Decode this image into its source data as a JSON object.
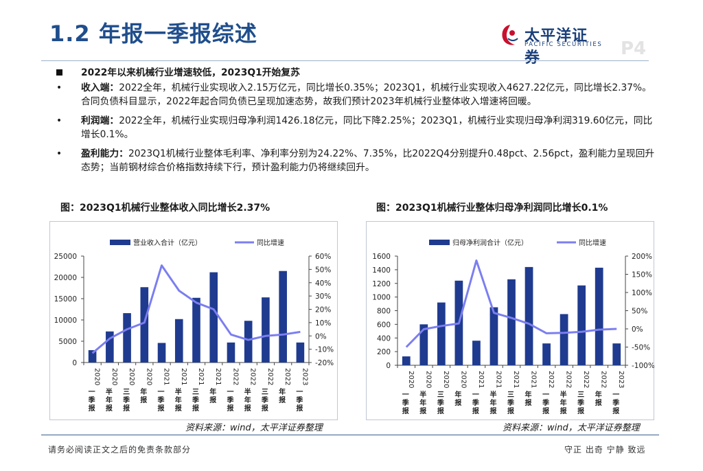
{
  "page": {
    "title": "1.2 年报一季报综述",
    "logo_cn": "太平洋证券",
    "logo_en": "PACIFIC SECURITIES",
    "page_number": "P4"
  },
  "summary": {
    "headline": "2022年以来机械行业增速较低，2023Q1开始复苏",
    "bullets": [
      {
        "marker": "•",
        "label": "收入端：",
        "text": "2022全年，机械行业实现收入2.15万亿元，同比增长0.35%；2023Q1，机械行业实现收入4627.22亿元，同比增长2.37%。合同负债科目显示，2022年起合同负债已呈现加速态势，故我们预计2023年机械行业整体收入增速将回暖。"
      },
      {
        "marker": "•",
        "label": "利润端：",
        "text": "2022全年，机械行业实现归母净利润1426.18亿元，同比下降2.25%；2023Q1，机械行业实现归母净利润319.60亿元，同比增长0.1%。"
      },
      {
        "marker": "•",
        "label": "盈利能力：",
        "text": "2023Q1机械行业整体毛利率、净利率分别为24.22%、7.35%，比2022Q4分别提升0.48pct、2.56pct，盈利能力呈现回升态势；当前钢材综合价格指数持续下行，预计盈利能力仍将继续回升。"
      }
    ]
  },
  "source_note": "资料来源：wind，太平洋证券整理",
  "footer": {
    "left": "请务必阅读正文之后的免责条款部分",
    "right": "守正 出奇 宁静 致远"
  },
  "colors": {
    "bar": "#1f3b8f",
    "line": "#7b7ef0",
    "title": "#1f4e8c"
  },
  "chart_data": [
    {
      "type": "bar",
      "title": "图：2023Q1机械行业整体收入同比增长2.37%",
      "categories": [
        "2020一季报",
        "2020半年报",
        "2020三季报",
        "2020年报",
        "2021一季报",
        "2021半年报",
        "2021三季报",
        "2021年报",
        "2022一季报",
        "2022半年报",
        "2022三季报",
        "2022年报",
        "2023一季报"
      ],
      "category_labels": [
        [
          "2020",
          "一季",
          "报"
        ],
        [
          "2020",
          "半年",
          "报"
        ],
        [
          "2020",
          "三季",
          "报"
        ],
        [
          "2020",
          "年",
          "报"
        ],
        [
          "2021",
          "一季",
          "报"
        ],
        [
          "2021",
          "半年",
          "报"
        ],
        [
          "2021",
          "三季",
          "报"
        ],
        [
          "2021",
          "年",
          "报"
        ],
        [
          "2022",
          "一季",
          "报"
        ],
        [
          "2022",
          "半年",
          "报"
        ],
        [
          "2022",
          "三季",
          "报"
        ],
        [
          "2022",
          "年",
          "报"
        ],
        [
          "2023",
          "一季",
          "报"
        ]
      ],
      "series": [
        {
          "name": "营业收入合计（亿元）",
          "kind": "bar",
          "axis": "left",
          "values": [
            2900,
            7300,
            11600,
            17700,
            4600,
            10200,
            15200,
            21200,
            4700,
            9800,
            15300,
            21500,
            4700
          ]
        },
        {
          "name": "同比增速",
          "kind": "line",
          "axis": "right",
          "values": [
            -13,
            -2,
            5,
            10,
            53,
            34,
            25,
            20,
            1,
            -3,
            0,
            1,
            3
          ]
        }
      ],
      "ylim": [
        0,
        25000
      ],
      "yticks": [
        0,
        5000,
        10000,
        15000,
        20000,
        25000
      ],
      "y2lim": [
        -20,
        60
      ],
      "y2ticks": [
        -20,
        -10,
        0,
        10,
        20,
        30,
        40,
        50,
        60
      ],
      "y2_suffix": "%"
    },
    {
      "type": "bar",
      "title": "图：2023Q1机械行业整体归母净利润同比增长0.1%",
      "categories": [
        "2020一季报",
        "2020半年报",
        "2020三季报",
        "2020年报",
        "2021一季报",
        "2021半年报",
        "2021三季报",
        "2021年报",
        "2022一季报",
        "2022半年报",
        "2022三季报",
        "2022年报",
        "2023一季报"
      ],
      "category_labels": [
        [
          "2020",
          "一季",
          "报"
        ],
        [
          "2020",
          "半年",
          "报"
        ],
        [
          "2020",
          "三季",
          "报"
        ],
        [
          "2020",
          "年",
          "报"
        ],
        [
          "2021",
          "一季",
          "报"
        ],
        [
          "2021",
          "半年",
          "报"
        ],
        [
          "2021",
          "三季",
          "报"
        ],
        [
          "2021",
          "年",
          "报"
        ],
        [
          "2022",
          "一季",
          "报"
        ],
        [
          "2022",
          "半年",
          "报"
        ],
        [
          "2022",
          "三季",
          "报"
        ],
        [
          "2022",
          "年",
          "报"
        ],
        [
          "2023",
          "一季",
          "报"
        ]
      ],
      "series": [
        {
          "name": "归母净利润合计（亿元）",
          "kind": "bar",
          "axis": "left",
          "values": [
            130,
            600,
            920,
            1240,
            360,
            850,
            1260,
            1440,
            320,
            750,
            1170,
            1430,
            320
          ]
        },
        {
          "name": "同比增速",
          "kind": "line",
          "axis": "right",
          "values": [
            -50,
            -1,
            8,
            15,
            188,
            44,
            30,
            14,
            -12,
            -11,
            -8,
            -2,
            0
          ]
        }
      ],
      "ylim": [
        0,
        1600
      ],
      "yticks": [
        0,
        200,
        400,
        600,
        800,
        1000,
        1200,
        1400,
        1600
      ],
      "y2lim": [
        -100,
        200
      ],
      "y2ticks": [
        -100,
        -50,
        0,
        50,
        100,
        150,
        200
      ],
      "y2_suffix": "%"
    }
  ]
}
